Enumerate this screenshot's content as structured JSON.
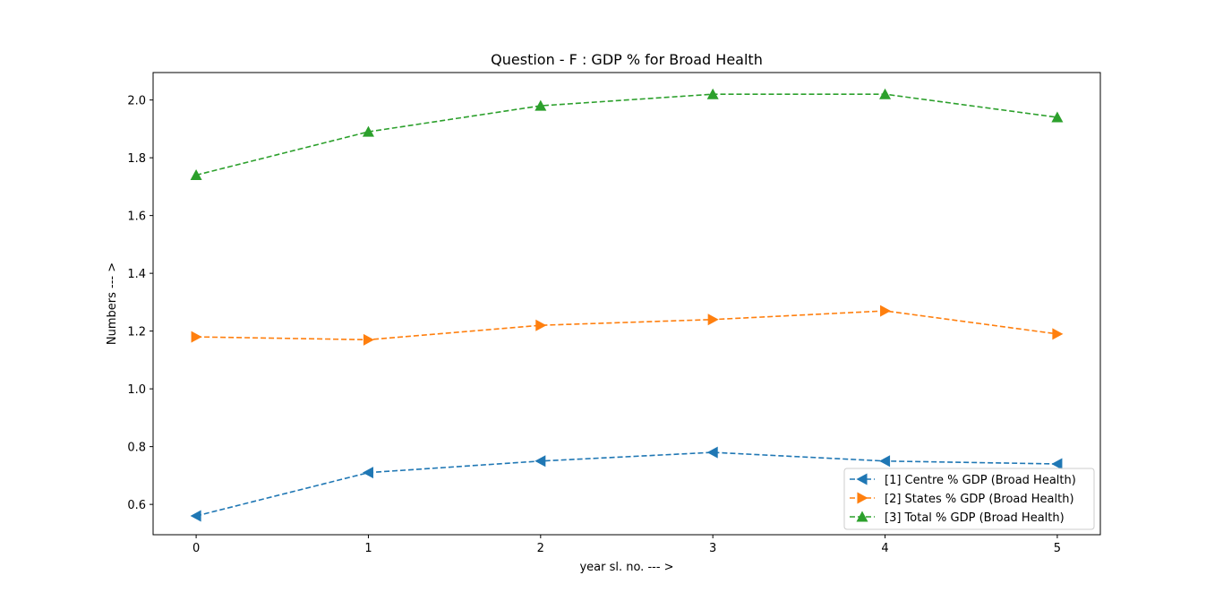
{
  "chart_data": {
    "type": "line",
    "title": "Question - F : GDP % for Broad Health",
    "xlabel": "year sl. no. --- >",
    "ylabel": "Numbers --- >",
    "x": [
      0,
      1,
      2,
      3,
      4,
      5
    ],
    "xlim": [
      -0.25,
      5.25
    ],
    "ylim": [
      0.495,
      2.095
    ],
    "xticks": [
      0,
      1,
      2,
      3,
      4,
      5
    ],
    "yticks": [
      0.6,
      0.8,
      1.0,
      1.2,
      1.4,
      1.6,
      1.8,
      2.0
    ],
    "ytick_labels": [
      "0.6",
      "0.8",
      "1.0",
      "1.2",
      "1.4",
      "1.6",
      "1.8",
      "2.0"
    ],
    "grid": false,
    "legend_position": "lower right",
    "series": [
      {
        "name": "[1] Centre % GDP (Broad Health)",
        "values": [
          0.56,
          0.71,
          0.75,
          0.78,
          0.75,
          0.74
        ],
        "color": "#1f77b4",
        "marker": "triangle-left",
        "linestyle": "dashed"
      },
      {
        "name": "[2] States % GDP (Broad Health)",
        "values": [
          1.18,
          1.17,
          1.22,
          1.24,
          1.27,
          1.19
        ],
        "color": "#ff7f0e",
        "marker": "triangle-right",
        "linestyle": "dashed"
      },
      {
        "name": "[3] Total % GDP (Broad Health)",
        "values": [
          1.74,
          1.89,
          1.98,
          2.02,
          2.02,
          1.94
        ],
        "color": "#2ca02c",
        "marker": "triangle-up",
        "linestyle": "dashed"
      }
    ]
  }
}
